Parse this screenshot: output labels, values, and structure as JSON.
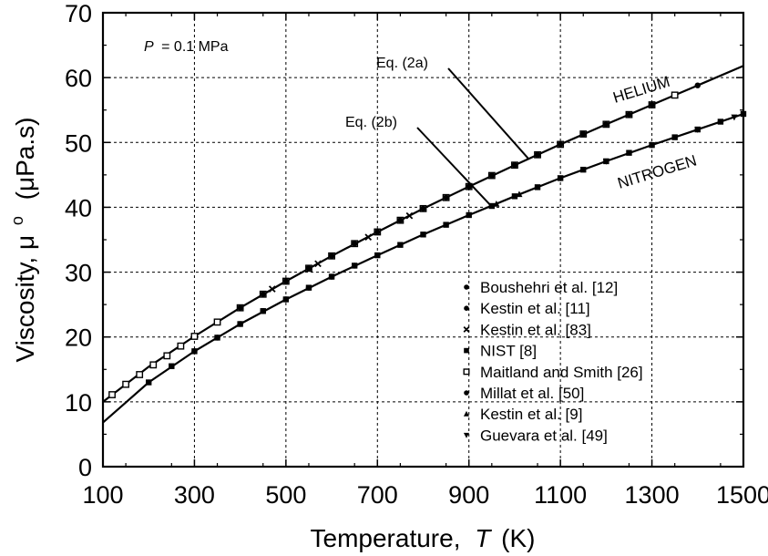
{
  "chart_data": {
    "type": "line",
    "xlabel": "Temperature,",
    "xlabel_var": "T",
    "xlabel_unit": "(K)",
    "ylabel": "Viscosity, μ",
    "ylabel_sup": "o",
    "ylabel_unit": "(μPa.s)",
    "condition_label": "= 0.1 MPa",
    "condition_var": "P",
    "xlim": [
      100,
      1500
    ],
    "ylim": [
      0,
      70
    ],
    "xticks": [
      100,
      300,
      500,
      700,
      900,
      1100,
      1300,
      1500
    ],
    "yticks": [
      0,
      10,
      20,
      30,
      40,
      50,
      60,
      70
    ],
    "grid": true,
    "curve_labels": {
      "helium": "HELIUM",
      "nitrogen": "NITROGEN"
    },
    "equation_labels": {
      "eq2a": "Eq. (2a)",
      "eq2b": "Eq. (2b)"
    },
    "series": [
      {
        "name": "HELIUM",
        "kind": "line",
        "x": [
          100,
          200,
          300,
          400,
          500,
          600,
          700,
          800,
          900,
          1000,
          1100,
          1200,
          1300,
          1400,
          1500
        ],
        "y": [
          10.0,
          15.4,
          20.1,
          24.5,
          28.6,
          32.5,
          36.2,
          39.8,
          43.2,
          46.5,
          49.7,
          52.8,
          55.8,
          58.8,
          61.8
        ]
      },
      {
        "name": "NITROGEN",
        "kind": "line",
        "x": [
          100,
          200,
          300,
          400,
          500,
          600,
          700,
          800,
          900,
          1000,
          1100,
          1200,
          1300,
          1400,
          1500
        ],
        "y": [
          6.8,
          13.0,
          17.8,
          22.0,
          25.8,
          29.3,
          32.6,
          35.8,
          38.8,
          41.7,
          44.5,
          47.1,
          49.6,
          52.0,
          54.4
        ]
      },
      {
        "name": "Boushehri et al. [12]",
        "kind": "points",
        "marker": "circle",
        "x": [
          300,
          350,
          400,
          450,
          500
        ],
        "y": [
          20.1,
          22.3,
          24.5,
          26.6,
          28.6
        ]
      },
      {
        "name": "Kestin et al. [11]",
        "kind": "points",
        "marker": "circle",
        "x": [
          300,
          350,
          400,
          450,
          500,
          550,
          600,
          650
        ],
        "y": [
          17.8,
          19.9,
          22.0,
          24.0,
          25.8,
          27.6,
          29.3,
          31.0
        ]
      },
      {
        "name": "Kestin et al. [83]",
        "kind": "points",
        "marker": "x",
        "x": [
          470,
          570,
          680,
          770
        ],
        "y": [
          27.4,
          31.3,
          35.4,
          38.7
        ]
      },
      {
        "name": "NIST [8]",
        "kind": "points",
        "marker": "square",
        "x": [
          200,
          250,
          300,
          350,
          400,
          450,
          500,
          550,
          600,
          650,
          700,
          750,
          800,
          850,
          900,
          950,
          1000,
          1050,
          1100,
          1150,
          1200,
          1250,
          1300,
          1350,
          1400,
          1450,
          1500
        ],
        "y": [
          13.0,
          15.5,
          17.8,
          19.9,
          22.0,
          24.0,
          25.8,
          27.6,
          29.3,
          31.0,
          32.6,
          34.2,
          35.8,
          37.3,
          38.8,
          40.2,
          41.7,
          43.1,
          44.5,
          45.8,
          47.1,
          48.4,
          49.6,
          50.8,
          52.0,
          53.2,
          54.4
        ]
      },
      {
        "name": "Maitland and Smith [26]",
        "kind": "points",
        "marker": "open-square",
        "x": [
          120,
          150,
          180,
          210,
          240,
          270,
          300,
          350,
          400,
          450,
          500,
          550,
          600,
          650,
          700,
          750,
          800,
          850,
          900,
          950,
          1000,
          1050,
          1100,
          1150,
          1200,
          1250,
          1300,
          1350
        ],
        "y": [
          11.1,
          12.7,
          14.2,
          15.7,
          17.1,
          18.6,
          20.1,
          22.3,
          24.5,
          26.6,
          28.6,
          30.6,
          32.5,
          34.4,
          36.2,
          38.0,
          39.8,
          41.5,
          43.2,
          44.9,
          46.5,
          48.1,
          49.7,
          51.3,
          52.8,
          54.3,
          55.8,
          57.3
        ]
      },
      {
        "name": "Millat et al. [50]",
        "kind": "points",
        "marker": "circle",
        "x": [
          400,
          450,
          500,
          550,
          600,
          650,
          700,
          750,
          800,
          850,
          900,
          950,
          1000,
          1050,
          1100,
          1150,
          1200,
          1250,
          1300,
          1400
        ],
        "y": [
          24.5,
          26.6,
          28.6,
          30.6,
          32.5,
          34.4,
          36.2,
          38.0,
          39.8,
          41.5,
          43.2,
          44.9,
          46.5,
          48.1,
          49.7,
          51.3,
          52.8,
          54.3,
          55.8,
          58.8
        ]
      },
      {
        "name": "Kestin et al. [9]",
        "kind": "points",
        "marker": "triangle-up",
        "x": [
          960,
          1010
        ],
        "y": [
          40.5,
          42.0
        ]
      },
      {
        "name": "Guevara et al. [49]",
        "kind": "points",
        "marker": "triangle-down",
        "x": [
          1100,
          1200,
          1300,
          1400,
          1480
        ],
        "y": [
          44.5,
          47.1,
          49.6,
          52.0,
          53.9
        ]
      }
    ],
    "legend": {
      "placement": "lower-right",
      "entries": [
        {
          "label": "Boushehri et al. [12]",
          "marker": "circle"
        },
        {
          "label": "Kestin et al. [11]",
          "marker": "circle"
        },
        {
          "label": "Kestin et al. [83]",
          "marker": "x"
        },
        {
          "label": "NIST [8]",
          "marker": "square"
        },
        {
          "label": "Maitland and Smith [26]",
          "marker": "open-square"
        },
        {
          "label": "Millat et al. [50]",
          "marker": "circle"
        },
        {
          "label": "Kestin et al. [9]",
          "marker": "triangle-up"
        },
        {
          "label": "Guevara et al. [49]",
          "marker": "triangle-down"
        }
      ]
    }
  }
}
